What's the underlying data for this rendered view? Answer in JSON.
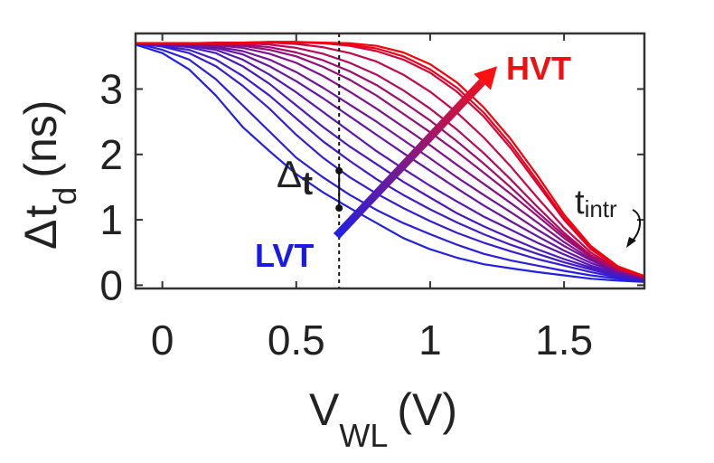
{
  "chart_data": {
    "type": "line",
    "xlabel_main": "V",
    "xlabel_sub": "WL",
    "xlabel_unit": "(V)",
    "ylabel_delta": "Δ",
    "ylabel_main": "t",
    "ylabel_sub": "d",
    "ylabel_unit": "(ns)",
    "xlim": [
      -0.1,
      1.8
    ],
    "ylim": [
      -0.05,
      3.85
    ],
    "xticks": [
      0,
      0.5,
      1,
      1.5
    ],
    "xtick_labels": [
      "0",
      "0.5",
      "1",
      "1.5"
    ],
    "yticks": [
      0,
      1,
      2,
      3
    ],
    "ytick_labels": [
      "0",
      "1",
      "2",
      "3"
    ],
    "x": [
      -0.1,
      0.0,
      0.1,
      0.2,
      0.3,
      0.4,
      0.5,
      0.6,
      0.7,
      0.8,
      0.9,
      1.0,
      1.1,
      1.2,
      1.3,
      1.4,
      1.5,
      1.6,
      1.7,
      1.8
    ],
    "series": [
      {
        "name": "c1",
        "color": "#2020e6",
        "values": [
          3.68,
          3.55,
          3.3,
          2.9,
          2.42,
          2.05,
          1.7,
          1.42,
          1.18,
          0.95,
          0.72,
          0.55,
          0.42,
          0.32,
          0.26,
          0.2,
          0.15,
          0.1,
          0.07,
          0.05
        ]
      },
      {
        "name": "c2",
        "color": "#2a1ede",
        "values": [
          3.7,
          3.6,
          3.45,
          3.15,
          2.75,
          2.35,
          1.95,
          1.65,
          1.38,
          1.15,
          0.95,
          0.78,
          0.62,
          0.48,
          0.38,
          0.3,
          0.22,
          0.15,
          0.1,
          0.06
        ]
      },
      {
        "name": "c3",
        "color": "#351cd5",
        "values": [
          3.7,
          3.65,
          3.55,
          3.35,
          3.05,
          2.7,
          2.3,
          1.95,
          1.65,
          1.4,
          1.18,
          0.98,
          0.8,
          0.65,
          0.52,
          0.4,
          0.3,
          0.2,
          0.12,
          0.07
        ]
      },
      {
        "name": "c4",
        "color": "#401acb",
        "values": [
          3.7,
          3.66,
          3.6,
          3.45,
          3.2,
          2.9,
          2.55,
          2.2,
          1.9,
          1.62,
          1.38,
          1.16,
          0.96,
          0.78,
          0.62,
          0.48,
          0.35,
          0.24,
          0.14,
          0.08
        ]
      },
      {
        "name": "c5",
        "color": "#4b18c0",
        "values": [
          3.7,
          3.68,
          3.64,
          3.55,
          3.35,
          3.08,
          2.75,
          2.42,
          2.12,
          1.85,
          1.58,
          1.34,
          1.1,
          0.9,
          0.72,
          0.55,
          0.4,
          0.27,
          0.16,
          0.09
        ]
      },
      {
        "name": "c6",
        "color": "#5816b3",
        "values": [
          3.7,
          3.68,
          3.66,
          3.6,
          3.45,
          3.22,
          2.95,
          2.65,
          2.35,
          2.05,
          1.78,
          1.52,
          1.28,
          1.05,
          0.85,
          0.65,
          0.47,
          0.3,
          0.18,
          0.1
        ]
      },
      {
        "name": "c7",
        "color": "#6614a6",
        "values": [
          3.7,
          3.69,
          3.67,
          3.63,
          3.53,
          3.35,
          3.12,
          2.86,
          2.58,
          2.3,
          2.02,
          1.75,
          1.48,
          1.22,
          0.98,
          0.75,
          0.53,
          0.34,
          0.2,
          0.11
        ]
      },
      {
        "name": "c8",
        "color": "#741299",
        "values": [
          3.7,
          3.69,
          3.68,
          3.65,
          3.58,
          3.45,
          3.26,
          3.02,
          2.76,
          2.5,
          2.22,
          1.94,
          1.65,
          1.38,
          1.12,
          0.85,
          0.6,
          0.38,
          0.21,
          0.11
        ]
      },
      {
        "name": "c9",
        "color": "#83108b",
        "values": [
          3.7,
          3.7,
          3.69,
          3.67,
          3.63,
          3.54,
          3.4,
          3.2,
          2.96,
          2.7,
          2.42,
          2.14,
          1.84,
          1.55,
          1.26,
          0.96,
          0.66,
          0.4,
          0.22,
          0.11
        ]
      },
      {
        "name": "c10",
        "color": "#920e7c",
        "values": [
          3.7,
          3.7,
          3.7,
          3.69,
          3.66,
          3.6,
          3.5,
          3.34,
          3.14,
          2.9,
          2.62,
          2.34,
          2.04,
          1.72,
          1.4,
          1.06,
          0.72,
          0.43,
          0.23,
          0.12
        ]
      },
      {
        "name": "c11",
        "color": "#a20c6c",
        "values": [
          3.7,
          3.7,
          3.7,
          3.7,
          3.68,
          3.64,
          3.56,
          3.44,
          3.27,
          3.06,
          2.8,
          2.52,
          2.2,
          1.86,
          1.5,
          1.12,
          0.76,
          0.45,
          0.24,
          0.12
        ]
      },
      {
        "name": "c12",
        "color": "#b30a5b",
        "values": [
          3.7,
          3.7,
          3.7,
          3.7,
          3.7,
          3.68,
          3.63,
          3.54,
          3.4,
          3.22,
          2.98,
          2.7,
          2.38,
          2.02,
          1.62,
          1.2,
          0.8,
          0.46,
          0.24,
          0.12
        ]
      },
      {
        "name": "c13",
        "color": "#c40849",
        "values": [
          3.7,
          3.7,
          3.7,
          3.71,
          3.71,
          3.71,
          3.69,
          3.64,
          3.55,
          3.42,
          3.22,
          2.96,
          2.64,
          2.26,
          1.82,
          1.34,
          0.88,
          0.5,
          0.25,
          0.12
        ]
      },
      {
        "name": "c14",
        "color": "#d70535",
        "values": [
          3.7,
          3.7,
          3.7,
          3.7,
          3.71,
          3.72,
          3.72,
          3.7,
          3.66,
          3.58,
          3.45,
          3.25,
          2.96,
          2.58,
          2.1,
          1.55,
          1.0,
          0.55,
          0.27,
          0.13
        ]
      },
      {
        "name": "c15",
        "color": "#ea021f",
        "values": [
          3.7,
          3.7,
          3.7,
          3.7,
          3.7,
          3.71,
          3.71,
          3.7,
          3.68,
          3.62,
          3.5,
          3.3,
          3.02,
          2.64,
          2.16,
          1.6,
          1.03,
          0.57,
          0.28,
          0.13
        ]
      },
      {
        "name": "c16",
        "color": "#f70008",
        "values": [
          3.7,
          3.7,
          3.7,
          3.7,
          3.71,
          3.72,
          3.72,
          3.71,
          3.7,
          3.66,
          3.56,
          3.38,
          3.1,
          2.72,
          2.24,
          1.68,
          1.08,
          0.6,
          0.29,
          0.14
        ]
      }
    ],
    "vline_x": 0.66,
    "delta_t_bracket": {
      "x": 0.66,
      "y_low": 1.18,
      "y_high": 1.75
    },
    "gradient_arrow": {
      "x_start": 0.65,
      "y_start": 0.75,
      "x_end": 1.25,
      "y_end": 3.35,
      "color_start": "#2020e6",
      "color_end": "#ff1010"
    },
    "annotations": {
      "lvt": {
        "text": "LVT",
        "color": "#1a1ae6"
      },
      "hvt": {
        "text": "HVT",
        "color": "#ee1111"
      },
      "delta_t": {
        "delta": "Δ",
        "t": "t"
      },
      "t_intr": {
        "main": "t",
        "sub": "intr"
      }
    },
    "grid": false,
    "legend": "none"
  }
}
